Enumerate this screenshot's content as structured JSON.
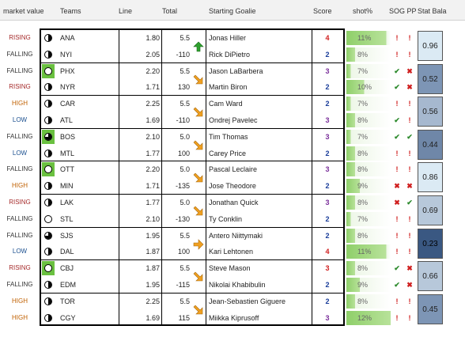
{
  "headers": {
    "market_value": "market value",
    "teams": "Teams",
    "line": "Line",
    "total": "Total",
    "starting_goalie": "Starting Goalie",
    "score": "Score",
    "shot": "shot%",
    "sog_pp": "SOG PP",
    "stat_bal": "Stat Bala"
  },
  "colors": {
    "rising": "#a52a2a",
    "high": "#c06000",
    "low": "#1a4f8f",
    "shot_fill": "#8fcf6a",
    "arrow_up": "#2ea02e",
    "arrow_side": "#f0a020"
  },
  "games": [
    {
      "balance": "0.96",
      "balance_color": "#dbeaf4",
      "arrow": "up",
      "teams": [
        {
          "market": "RISING",
          "market_class": "rising",
          "icon": "half",
          "team": "ANA",
          "line": "1.80",
          "total": "5.5",
          "goalie": "Jonas Hiller",
          "score": "4",
          "score_color": "red",
          "shot": "11%",
          "shot_fill": 0.9,
          "sog": "!",
          "pp": "!"
        },
        {
          "market": "FALLING",
          "market_class": "falling",
          "icon": "half",
          "team": "NYI",
          "line": "2.05",
          "total": "-110",
          "goalie": "Rick DiPietro",
          "score": "2",
          "score_color": "blue",
          "shot": "8%",
          "shot_fill": 0.2,
          "sog": "!",
          "pp": "!"
        }
      ]
    },
    {
      "balance": "0.52",
      "balance_color": "#7d95b5",
      "arrow": "down",
      "teams": [
        {
          "market": "FALLING",
          "market_class": "falling",
          "icon": "empty-green",
          "team": "PHX",
          "line": "2.20",
          "total": "5.5",
          "goalie": "Jason LaBarbera",
          "score": "3",
          "score_color": "purple",
          "shot": "7%",
          "shot_fill": 0.1,
          "sog": "✔",
          "pp": "✖"
        },
        {
          "market": "RISING",
          "market_class": "rising",
          "icon": "half",
          "team": "NYR",
          "line": "1.71",
          "total": "130",
          "goalie": "Martin Biron",
          "score": "2",
          "score_color": "blue",
          "shot": "10%",
          "shot_fill": 0.4,
          "sog": "✔",
          "pp": "✖"
        }
      ]
    },
    {
      "balance": "0.56",
      "balance_color": "#a6b8cf",
      "arrow": "down",
      "teams": [
        {
          "market": "HIGH",
          "market_class": "high",
          "icon": "half",
          "team": "CAR",
          "line": "2.25",
          "total": "5.5",
          "goalie": "Cam Ward",
          "score": "2",
          "score_color": "blue",
          "shot": "7%",
          "shot_fill": 0.1,
          "sog": "!",
          "pp": "!"
        },
        {
          "market": "LOW",
          "market_class": "low",
          "icon": "half",
          "team": "ATL",
          "line": "1.69",
          "total": "-110",
          "goalie": "Ondrej Pavelec",
          "score": "3",
          "score_color": "purple",
          "shot": "8%",
          "shot_fill": 0.2,
          "sog": "✔",
          "pp": "!"
        }
      ]
    },
    {
      "balance": "0.44",
      "balance_color": "#6f87a8",
      "arrow": "down",
      "teams": [
        {
          "market": "FALLING",
          "market_class": "falling",
          "icon": "quarter-green",
          "team": "BOS",
          "line": "2.10",
          "total": "5.0",
          "goalie": "Tim Thomas",
          "score": "3",
          "score_color": "purple",
          "shot": "7%",
          "shot_fill": 0.1,
          "sog": "✔",
          "pp": "✔"
        },
        {
          "market": "LOW",
          "market_class": "low",
          "icon": "half",
          "team": "MTL",
          "line": "1.77",
          "total": "100",
          "goalie": "Carey Price",
          "score": "2",
          "score_color": "blue",
          "shot": "8%",
          "shot_fill": 0.2,
          "sog": "!",
          "pp": "!"
        }
      ]
    },
    {
      "balance": "0.86",
      "balance_color": "#dbeaf4",
      "arrow": "down",
      "teams": [
        {
          "market": "FALLING",
          "market_class": "falling",
          "icon": "empty-green",
          "team": "OTT",
          "line": "2.20",
          "total": "5.0",
          "goalie": "Pascal Leclaire",
          "score": "3",
          "score_color": "purple",
          "shot": "8%",
          "shot_fill": 0.2,
          "sog": "!",
          "pp": "!"
        },
        {
          "market": "HIGH",
          "market_class": "high",
          "icon": "half",
          "team": "MIN",
          "line": "1.71",
          "total": "-135",
          "goalie": "Jose Theodore",
          "score": "2",
          "score_color": "blue",
          "shot": "9%",
          "shot_fill": 0.3,
          "sog": "✖",
          "pp": "✖"
        }
      ]
    },
    {
      "balance": "0.69",
      "balance_color": "#b7c8da",
      "arrow": "down",
      "teams": [
        {
          "market": "RISING",
          "market_class": "rising",
          "icon": "half",
          "team": "LAK",
          "line": "1.77",
          "total": "5.0",
          "goalie": "Jonathan Quick",
          "score": "3",
          "score_color": "purple",
          "shot": "8%",
          "shot_fill": 0.2,
          "sog": "✖",
          "pp": "✔"
        },
        {
          "market": "FALLING",
          "market_class": "falling",
          "icon": "empty",
          "team": "STL",
          "line": "2.10",
          "total": "-130",
          "goalie": "Ty Conklin",
          "score": "2",
          "score_color": "blue",
          "shot": "7%",
          "shot_fill": 0.1,
          "sog": "!",
          "pp": "!"
        }
      ]
    },
    {
      "balance": "0.23",
      "balance_color": "#3a5882",
      "arrow": "right",
      "teams": [
        {
          "market": "FALLING",
          "market_class": "falling",
          "icon": "quarter",
          "team": "SJS",
          "line": "1.95",
          "total": "5.5",
          "goalie": "Antero Niittymaki",
          "score": "2",
          "score_color": "blue",
          "shot": "8%",
          "shot_fill": 0.2,
          "sog": "!",
          "pp": "!"
        },
        {
          "market": "LOW",
          "market_class": "low",
          "icon": "half",
          "team": "DAL",
          "line": "1.87",
          "total": "100",
          "goalie": "Kari Lehtonen",
          "score": "4",
          "score_color": "red",
          "shot": "11%",
          "shot_fill": 0.9,
          "sog": "!",
          "pp": "!"
        }
      ]
    },
    {
      "balance": "0.66",
      "balance_color": "#b7c8da",
      "arrow": "down",
      "teams": [
        {
          "market": "RISING",
          "market_class": "rising",
          "icon": "empty-green",
          "team": "CBJ",
          "line": "1.87",
          "total": "5.5",
          "goalie": "Steve Mason",
          "score": "3",
          "score_color": "red",
          "shot": "8%",
          "shot_fill": 0.2,
          "sog": "✔",
          "pp": "✖"
        },
        {
          "market": "FALLING",
          "market_class": "falling",
          "icon": "half",
          "team": "EDM",
          "line": "1.95",
          "total": "-115",
          "goalie": "Nikolai Khabibulin",
          "score": "2",
          "score_color": "blue",
          "shot": "9%",
          "shot_fill": 0.3,
          "sog": "✔",
          "pp": "✖"
        }
      ]
    },
    {
      "balance": "0.45",
      "balance_color": "#7d95b5",
      "arrow": "down",
      "teams": [
        {
          "market": "HIGH",
          "market_class": "high",
          "icon": "half",
          "team": "TOR",
          "line": "2.25",
          "total": "5.5",
          "goalie": "Jean-Sebastien Giguere",
          "score": "2",
          "score_color": "blue",
          "shot": "8%",
          "shot_fill": 0.2,
          "sog": "!",
          "pp": "!"
        },
        {
          "market": "HIGH",
          "market_class": "high",
          "icon": "half",
          "team": "CGY",
          "line": "1.69",
          "total": "115",
          "goalie": "Miikka Kiprusoff",
          "score": "3",
          "score_color": "purple",
          "shot": "12%",
          "shot_fill": 1.0,
          "sog": "!",
          "pp": "!"
        }
      ]
    }
  ]
}
